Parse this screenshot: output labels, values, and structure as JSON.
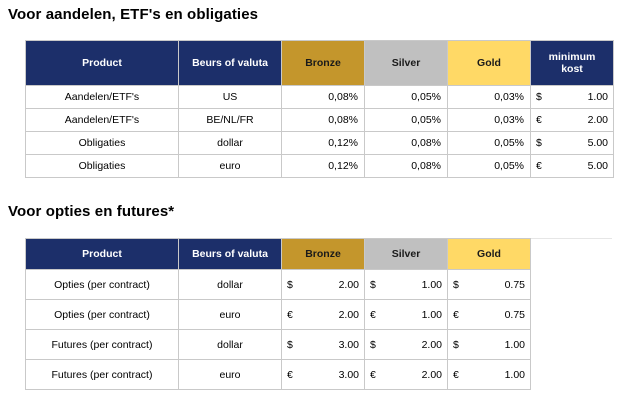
{
  "section1": {
    "title": "Voor aandelen, ETF's en obligaties",
    "headers": {
      "product": "Product",
      "beurs": "Beurs of valuta",
      "bronze": "Bronze",
      "silver": "Silver",
      "gold": "Gold",
      "min_line1": "minimum",
      "min_line2": "kost"
    },
    "rows": [
      {
        "product": "Aandelen/ETF's",
        "beurs": "US",
        "bronze": "0,08%",
        "silver": "0,05%",
        "gold": "0,03%",
        "min_cur": "$",
        "min_val": "1.00"
      },
      {
        "product": "Aandelen/ETF's",
        "beurs": "BE/NL/FR",
        "bronze": "0,08%",
        "silver": "0,05%",
        "gold": "0,03%",
        "min_cur": "€",
        "min_val": "2.00"
      },
      {
        "product": "Obligaties",
        "beurs": "dollar",
        "bronze": "0,12%",
        "silver": "0,08%",
        "gold": "0,05%",
        "min_cur": "$",
        "min_val": "5.00"
      },
      {
        "product": "Obligaties",
        "beurs": "euro",
        "bronze": "0,12%",
        "silver": "0,08%",
        "gold": "0,05%",
        "min_cur": "€",
        "min_val": "5.00"
      }
    ]
  },
  "section2": {
    "title": "Voor opties en futures*",
    "headers": {
      "product": "Product",
      "beurs": "Beurs of valuta",
      "bronze": "Bronze",
      "silver": "Silver",
      "gold": "Gold"
    },
    "rows": [
      {
        "product": "Opties (per contract)",
        "beurs": "dollar",
        "b_cur": "$",
        "b_val": "2.00",
        "s_cur": "$",
        "s_val": "1.00",
        "g_cur": "$",
        "g_val": "0.75"
      },
      {
        "product": "Opties (per contract)",
        "beurs": "euro",
        "b_cur": "€",
        "b_val": "2.00",
        "s_cur": "€",
        "s_val": "1.00",
        "g_cur": "€",
        "g_val": "0.75"
      },
      {
        "product": "Futures (per contract)",
        "beurs": "dollar",
        "b_cur": "$",
        "b_val": "3.00",
        "s_cur": "$",
        "s_val": "2.00",
        "g_cur": "$",
        "g_val": "1.00"
      },
      {
        "product": "Futures (per contract)",
        "beurs": "euro",
        "b_cur": "€",
        "b_val": "3.00",
        "s_cur": "€",
        "s_val": "2.00",
        "g_cur": "€",
        "g_val": "1.00"
      }
    ]
  },
  "colors": {
    "header_blue": "#1c2f6a",
    "bronze": "#c4962c",
    "silver": "#c0c0c0",
    "gold": "#ffd966"
  }
}
